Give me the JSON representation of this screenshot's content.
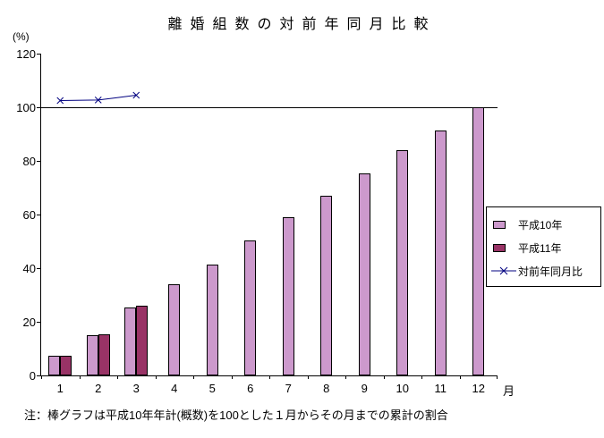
{
  "chart_data": {
    "type": "bar",
    "title": "離婚組数の対前年同月比較",
    "y_axis_unit_label": "(%)",
    "x_axis_unit_label": "月",
    "note": "注：棒グラフは平成10年年計(概数)を100とした１月からその月までの累計の割合",
    "categories": [
      "1",
      "2",
      "3",
      "4",
      "5",
      "6",
      "7",
      "8",
      "9",
      "10",
      "11",
      "12"
    ],
    "ylim": [
      0,
      120
    ],
    "yticks": [
      0,
      20,
      40,
      60,
      80,
      100,
      120
    ],
    "grid": false,
    "reference_line": 100,
    "legend_position": "right",
    "series": [
      {
        "name": "平成10年",
        "type": "bar",
        "color": "#CC99CC",
        "values": [
          7.5,
          15,
          25.5,
          34,
          41.5,
          50.5,
          59,
          67,
          75.5,
          84,
          91.5,
          100
        ]
      },
      {
        "name": "平成11年",
        "type": "bar",
        "color": "#993366",
        "values": [
          7.5,
          15.5,
          26,
          null,
          null,
          null,
          null,
          null,
          null,
          null,
          null,
          null
        ]
      },
      {
        "name": "対前年同月比",
        "type": "line",
        "color": "#000080",
        "marker": "x",
        "values": [
          102.5,
          102.7,
          104.5,
          null,
          null,
          null,
          null,
          null,
          null,
          null,
          null,
          null
        ]
      }
    ]
  }
}
